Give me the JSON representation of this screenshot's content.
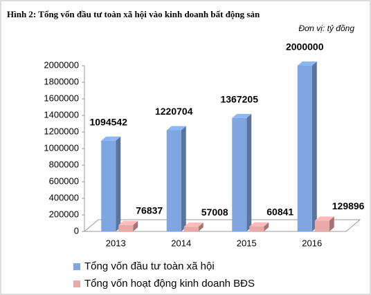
{
  "chart_data": {
    "type": "bar3d",
    "title": "Hình 2: Tổng vốn đầu tư toàn xã hội vào kinh doanh bất động sản",
    "subtitle": "Đơn vị: tỷ đồng",
    "categories": [
      "2013",
      "2014",
      "2015",
      "2016"
    ],
    "series": [
      {
        "name": "Tổng vốn đầu tư toàn xã hội",
        "color": "#7fa6e0",
        "values": [
          1094542,
          1220704,
          1367205,
          2000000
        ]
      },
      {
        "name": "Tổng vốn hoạt động kinh doanh BĐS",
        "color": "#e8a9a9",
        "values": [
          76837,
          57008,
          60841,
          129896
        ]
      }
    ],
    "ylim": [
      0,
      2000000
    ],
    "yticks": [
      0,
      200000,
      400000,
      600000,
      800000,
      1000000,
      1200000,
      1400000,
      1600000,
      1800000,
      2000000
    ],
    "legend": "bottom"
  }
}
